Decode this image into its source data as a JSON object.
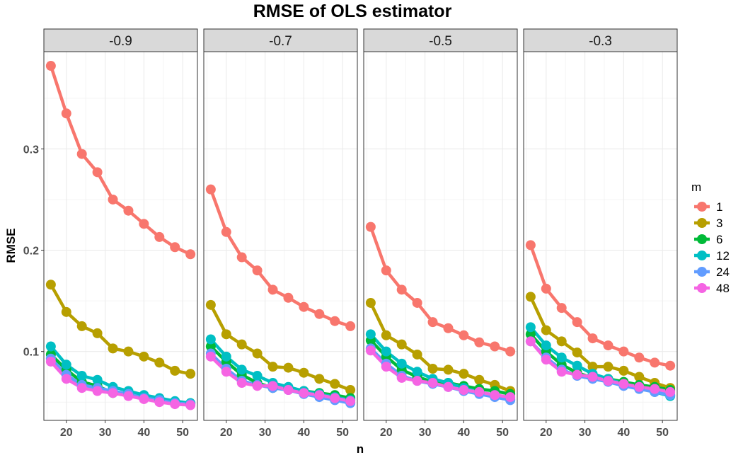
{
  "chart_data": {
    "type": "line",
    "title": "RMSE of OLS estimator",
    "xlabel": "n",
    "ylabel": "RMSE",
    "xlim": [
      14.2,
      53.8
    ],
    "ylim": [
      0.032,
      0.396
    ],
    "xticks": [
      20,
      30,
      40,
      50
    ],
    "yticks": [
      0.1,
      0.2,
      0.3
    ],
    "ytick_labels": [
      "0.1",
      "0.2",
      "0.3"
    ],
    "x": [
      16,
      20,
      24,
      28,
      32,
      36,
      40,
      44,
      48,
      52
    ],
    "legend": {
      "title": "m",
      "position": "right"
    },
    "series_colors": {
      "1": "#F8766D",
      "3": "#B79F00",
      "6": "#00BA38",
      "12": "#00BFC4",
      "24": "#619CFF",
      "48": "#F564E3"
    },
    "series_order": [
      "1",
      "3",
      "6",
      "12",
      "24",
      "48"
    ],
    "panels": [
      {
        "label": "-0.9",
        "series": [
          {
            "name": "1",
            "values": [
              0.382,
              0.335,
              0.295,
              0.277,
              0.25,
              0.239,
              0.226,
              0.213,
              0.203,
              0.196
            ]
          },
          {
            "name": "3",
            "values": [
              0.166,
              0.139,
              0.125,
              0.118,
              0.103,
              0.1,
              0.095,
              0.089,
              0.081,
              0.078
            ]
          },
          {
            "name": "6",
            "values": [
              0.097,
              0.082,
              0.07,
              0.066,
              0.059,
              0.058,
              0.055,
              0.052,
              0.05,
              0.049
            ]
          },
          {
            "name": "12",
            "values": [
              0.105,
              0.087,
              0.076,
              0.072,
              0.065,
              0.061,
              0.057,
              0.054,
              0.051,
              0.049
            ]
          },
          {
            "name": "24",
            "values": [
              0.093,
              0.077,
              0.067,
              0.064,
              0.061,
              0.058,
              0.054,
              0.052,
              0.049,
              0.048
            ]
          },
          {
            "name": "48",
            "values": [
              0.09,
              0.073,
              0.064,
              0.061,
              0.059,
              0.056,
              0.053,
              0.05,
              0.048,
              0.047
            ]
          }
        ]
      },
      {
        "label": "-0.7",
        "series": [
          {
            "name": "1",
            "values": [
              0.26,
              0.218,
              0.193,
              0.18,
              0.161,
              0.153,
              0.144,
              0.137,
              0.13,
              0.125
            ]
          },
          {
            "name": "3",
            "values": [
              0.146,
              0.117,
              0.107,
              0.098,
              0.085,
              0.084,
              0.079,
              0.073,
              0.068,
              0.062
            ]
          },
          {
            "name": "6",
            "values": [
              0.105,
              0.09,
              0.077,
              0.069,
              0.064,
              0.064,
              0.061,
              0.059,
              0.057,
              0.054
            ]
          },
          {
            "name": "12",
            "values": [
              0.112,
              0.095,
              0.082,
              0.076,
              0.069,
              0.065,
              0.061,
              0.058,
              0.055,
              0.052
            ]
          },
          {
            "name": "24",
            "values": [
              0.098,
              0.083,
              0.071,
              0.067,
              0.064,
              0.062,
              0.058,
              0.055,
              0.052,
              0.049
            ]
          },
          {
            "name": "48",
            "values": [
              0.095,
              0.08,
              0.069,
              0.066,
              0.066,
              0.062,
              0.059,
              0.057,
              0.054,
              0.051
            ]
          }
        ]
      },
      {
        "label": "-0.5",
        "series": [
          {
            "name": "1",
            "values": [
              0.223,
              0.18,
              0.161,
              0.148,
              0.129,
              0.123,
              0.116,
              0.109,
              0.105,
              0.1
            ]
          },
          {
            "name": "3",
            "values": [
              0.148,
              0.116,
              0.107,
              0.097,
              0.083,
              0.082,
              0.078,
              0.072,
              0.067,
              0.061
            ]
          },
          {
            "name": "6",
            "values": [
              0.111,
              0.095,
              0.082,
              0.075,
              0.07,
              0.069,
              0.066,
              0.063,
              0.061,
              0.058
            ]
          },
          {
            "name": "12",
            "values": [
              0.117,
              0.1,
              0.088,
              0.08,
              0.073,
              0.069,
              0.064,
              0.06,
              0.057,
              0.053
            ]
          },
          {
            "name": "24",
            "values": [
              0.103,
              0.088,
              0.076,
              0.071,
              0.068,
              0.065,
              0.061,
              0.058,
              0.055,
              0.052
            ]
          },
          {
            "name": "48",
            "values": [
              0.101,
              0.085,
              0.074,
              0.071,
              0.069,
              0.065,
              0.062,
              0.06,
              0.057,
              0.055
            ]
          }
        ]
      },
      {
        "label": "-0.3",
        "series": [
          {
            "name": "1",
            "values": [
              0.205,
              0.162,
              0.143,
              0.129,
              0.113,
              0.106,
              0.1,
              0.094,
              0.089,
              0.086
            ]
          },
          {
            "name": "3",
            "values": [
              0.154,
              0.121,
              0.11,
              0.099,
              0.085,
              0.085,
              0.081,
              0.075,
              0.069,
              0.064
            ]
          },
          {
            "name": "6",
            "values": [
              0.117,
              0.1,
              0.087,
              0.079,
              0.074,
              0.073,
              0.07,
              0.067,
              0.065,
              0.062
            ]
          },
          {
            "name": "12",
            "values": [
              0.124,
              0.106,
              0.094,
              0.086,
              0.078,
              0.073,
              0.068,
              0.064,
              0.06,
              0.056
            ]
          },
          {
            "name": "24",
            "values": [
              0.11,
              0.094,
              0.082,
              0.076,
              0.073,
              0.07,
              0.066,
              0.063,
              0.06,
              0.057
            ]
          },
          {
            "name": "48",
            "values": [
              0.11,
              0.092,
              0.08,
              0.077,
              0.075,
              0.071,
              0.068,
              0.065,
              0.063,
              0.06
            ]
          }
        ]
      }
    ]
  }
}
